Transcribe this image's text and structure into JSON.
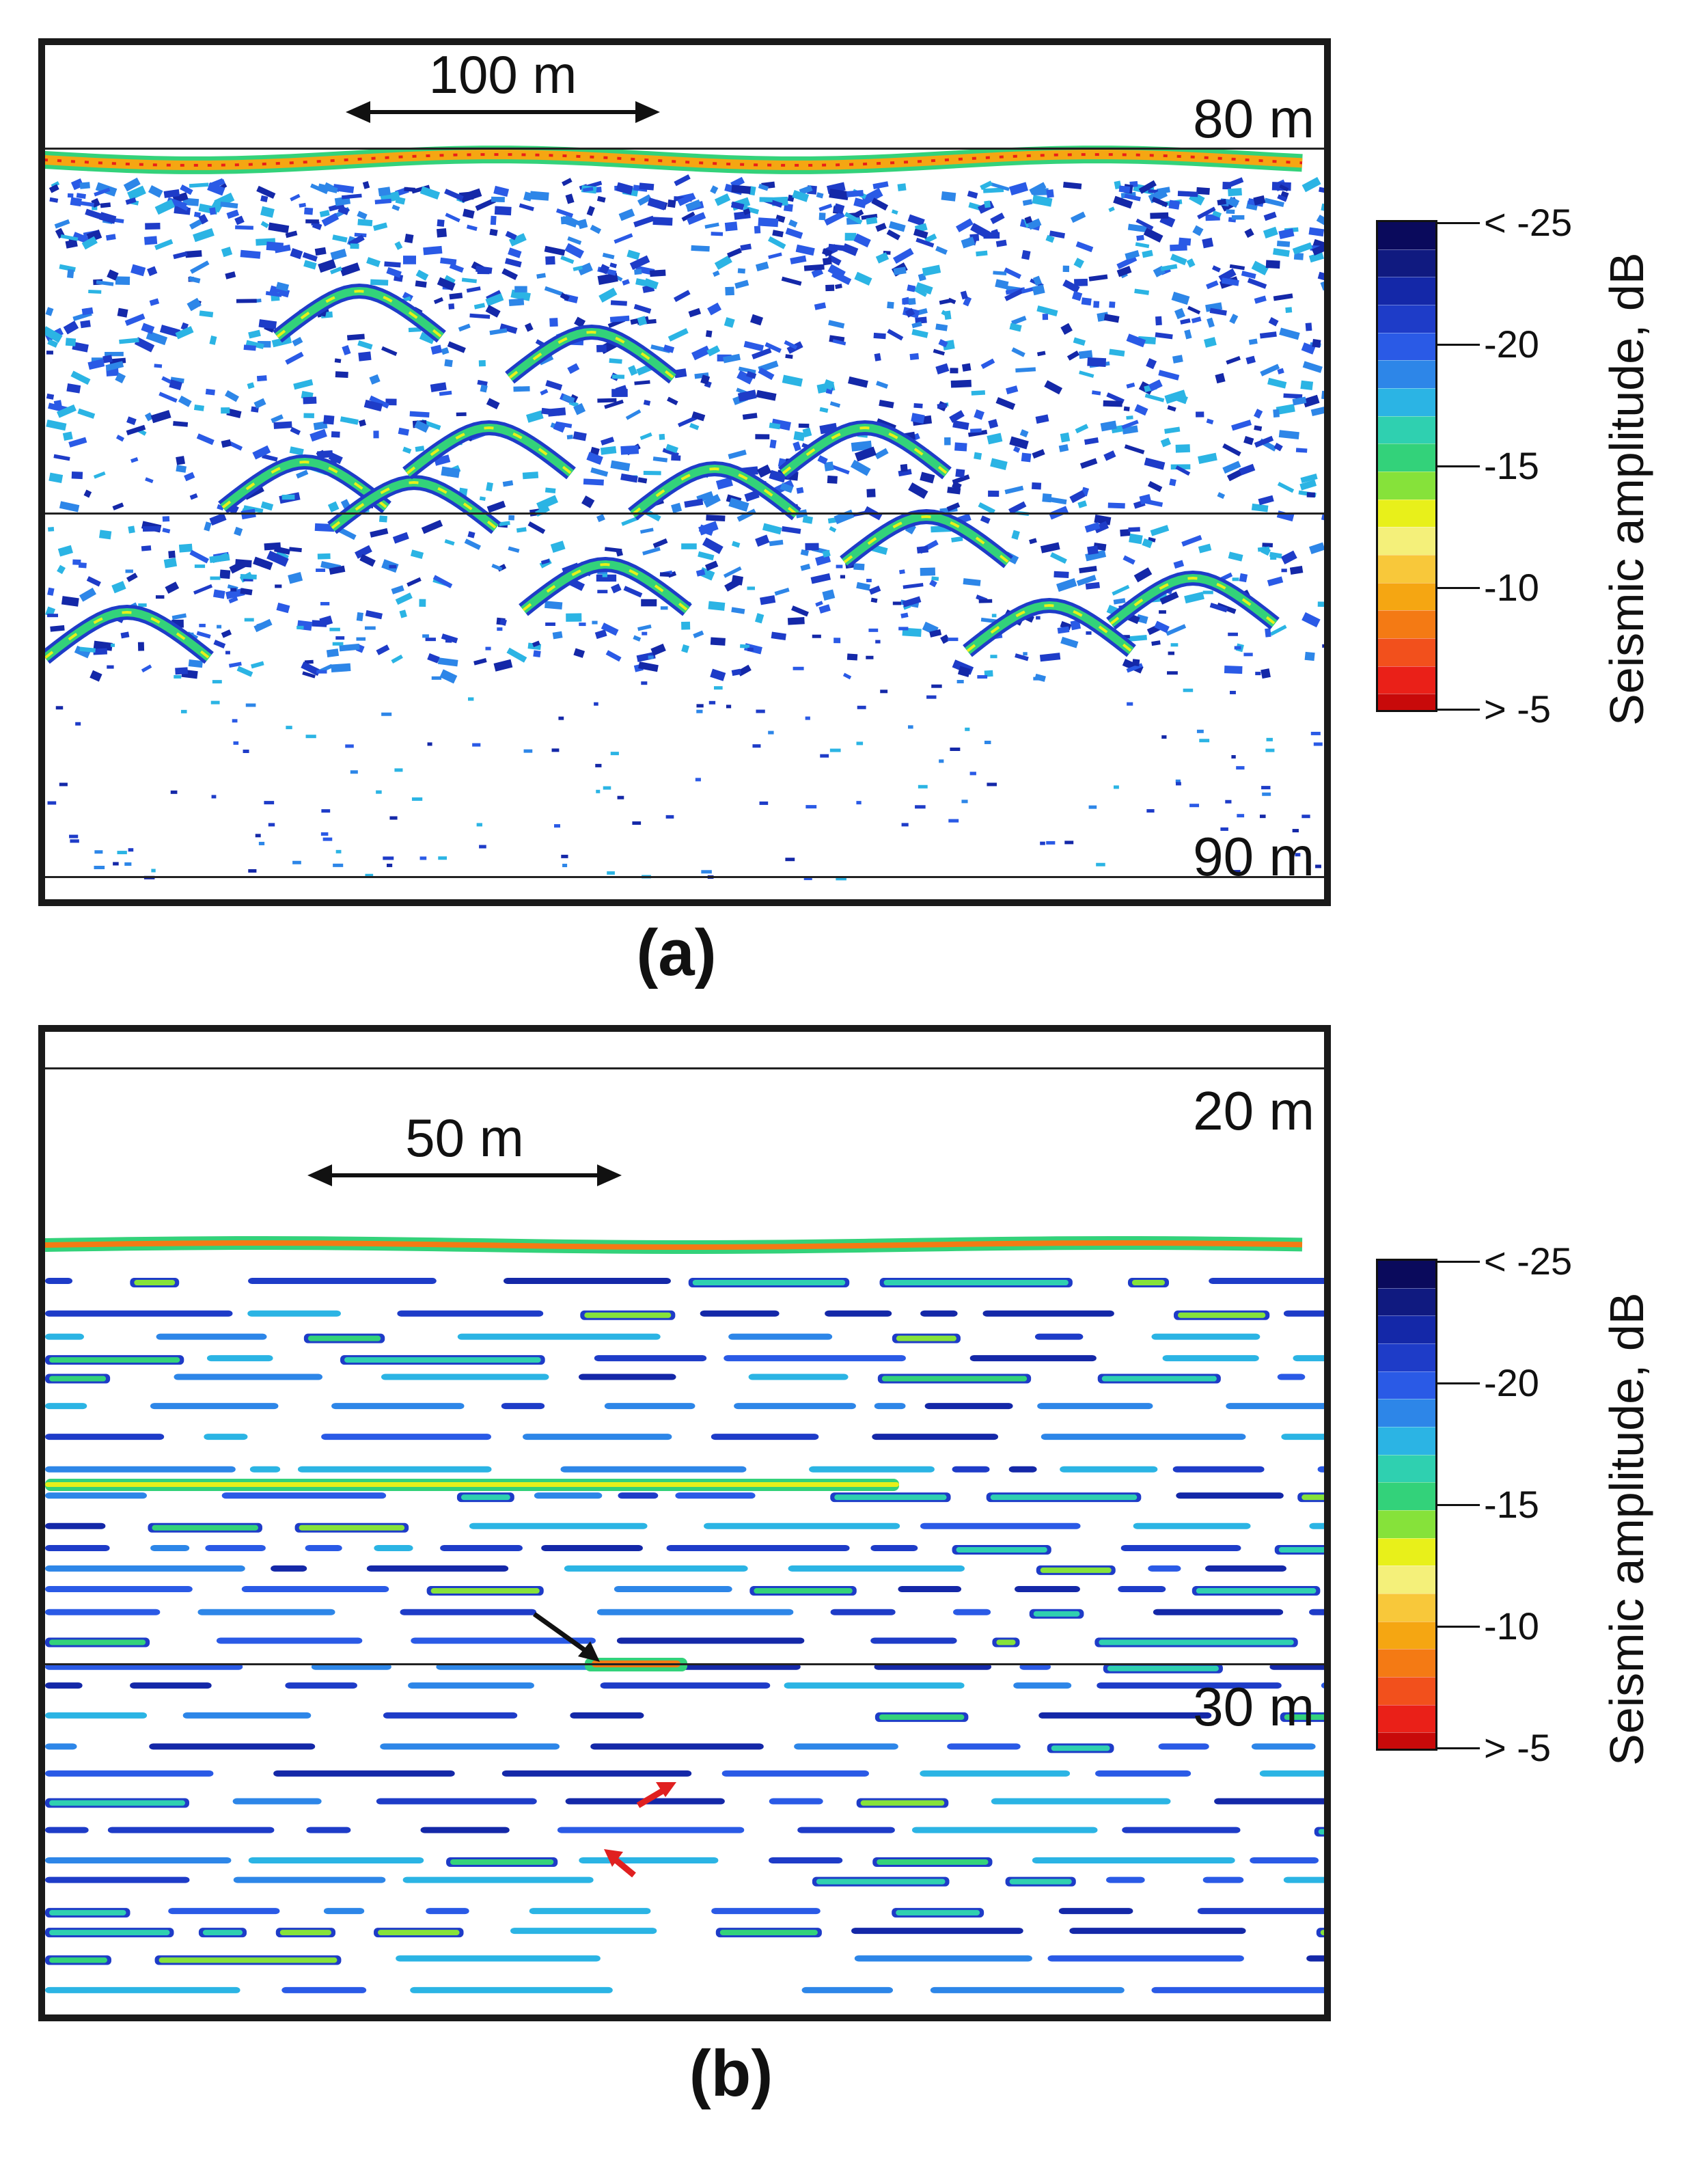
{
  "panels": [
    {
      "id": "a",
      "label": "(a)",
      "scale_bar_label": "100 m",
      "depth_top_label": "80 m",
      "depth_bottom_label": "90 m"
    },
    {
      "id": "b",
      "label": "(b)",
      "scale_bar_label": "50 m",
      "depth_top_label": "20 m",
      "depth_bottom_label": "30 m"
    }
  ],
  "colorbar": {
    "title": "Seismic amplitude, dB",
    "tick_labels": [
      "< -25",
      "-20",
      "-15",
      "-10",
      "> -5"
    ],
    "colors": [
      "#0a0a5c",
      "#101a80",
      "#1428a8",
      "#1e3cc8",
      "#2a5ae6",
      "#2d86e8",
      "#2bb4e4",
      "#2fd0b0",
      "#33d27a",
      "#86e23a",
      "#e8f01a",
      "#f4f07a",
      "#f8c83a",
      "#f5a612",
      "#f47a14",
      "#f2501c",
      "#ea2018",
      "#c80a0a"
    ],
    "accent_reflector_color": "#e8483a",
    "arrow_colors": {
      "black": "#111111",
      "red": "#e02020"
    }
  }
}
